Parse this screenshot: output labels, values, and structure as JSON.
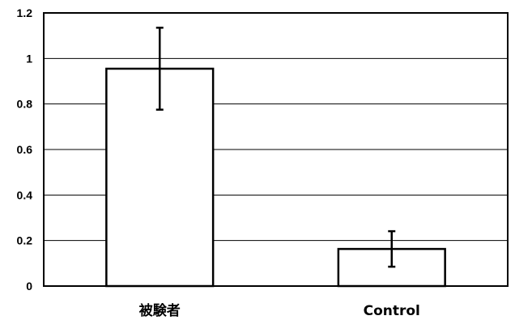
{
  "chart_data": {
    "type": "bar",
    "title": "",
    "xlabel": "",
    "ylabel": "",
    "categories": [
      "被験者",
      "Control"
    ],
    "values": [
      0.955,
      0.163
    ],
    "error": [
      0.18,
      0.078
    ],
    "ylim": [
      0,
      1.2
    ],
    "yticks": [
      0,
      0.2,
      0.4,
      0.6,
      0.8,
      1,
      1.2
    ],
    "ytick_labels": [
      "0",
      "0.2",
      "0.4",
      "0.6",
      "0.8",
      "1",
      "1.2"
    ],
    "grid": true,
    "legend": "none",
    "colors": {
      "bar_fill": "#ffffff",
      "bar_stroke": "#000000",
      "grid": "#000000"
    }
  }
}
